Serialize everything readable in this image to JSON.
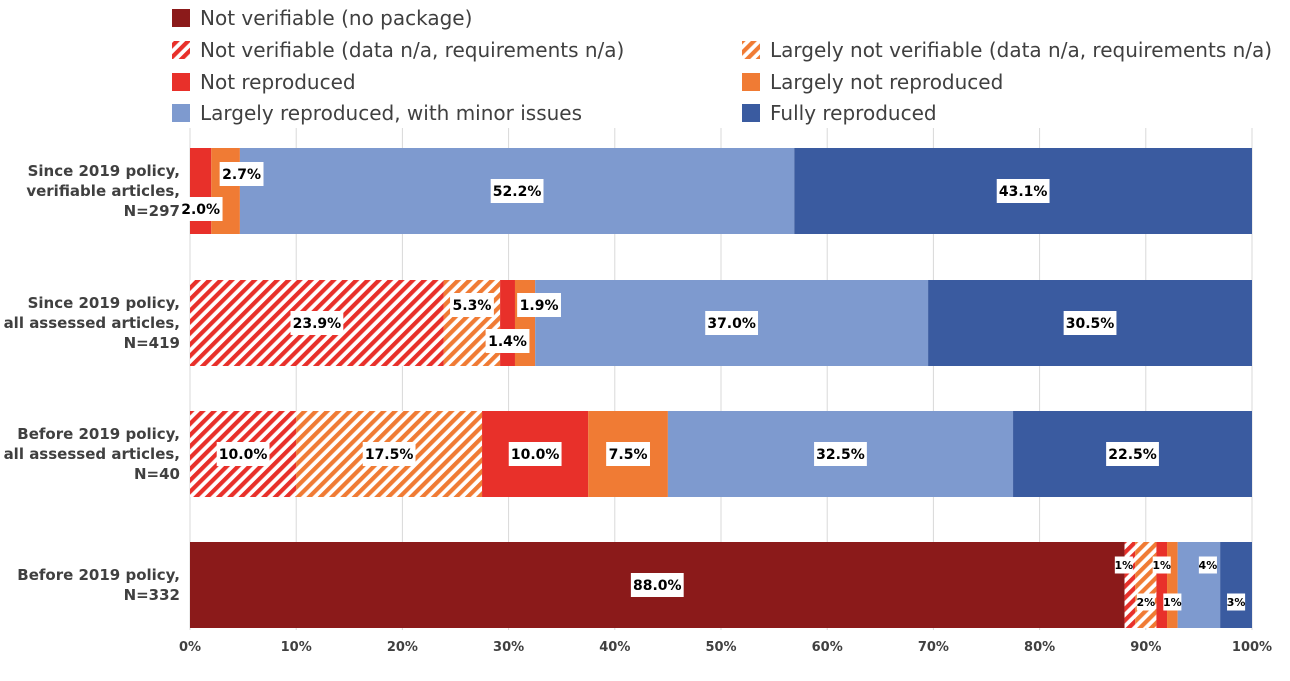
{
  "chart_data": {
    "type": "bar",
    "orientation": "horizontal",
    "stacked": true,
    "percent_scale": true,
    "xlim": [
      0,
      100
    ],
    "x_ticks": [
      "0%",
      "10%",
      "20%",
      "30%",
      "40%",
      "50%",
      "60%",
      "70%",
      "80%",
      "90%",
      "100%"
    ],
    "grid": "vertical",
    "legend_position": "top",
    "categories": [
      [
        "Since 2019 policy,",
        "verifiable articles,",
        "N=297"
      ],
      [
        "Since 2019 policy,",
        "all assessed articles,",
        "N=419"
      ],
      [
        "Before 2019 policy,",
        "all assessed articles,",
        "N=40"
      ],
      [
        "Before 2019 policy,",
        "N=332"
      ]
    ],
    "series": [
      {
        "name": "Not verifiable (no package)",
        "color": "#8B1A1A",
        "pattern": "solid",
        "values": [
          0,
          0,
          0,
          88.0
        ],
        "labels": [
          "",
          "",
          "",
          "88.0%"
        ]
      },
      {
        "name": "Not verifiable (data n/a, requirements n/a)",
        "color": "#E8302A",
        "pattern": "hatch",
        "values": [
          0,
          23.9,
          10.0,
          1.0
        ],
        "labels": [
          "",
          "23.9%",
          "10.0%",
          "1%"
        ]
      },
      {
        "name": "Largely not verifiable (data n/a, requirements n/a)",
        "color": "#F07B34",
        "pattern": "hatch",
        "values": [
          0,
          5.3,
          17.5,
          2.0
        ],
        "labels": [
          "",
          "5.3%",
          "17.5%",
          "2%"
        ]
      },
      {
        "name": "Not reproduced",
        "color": "#E8302A",
        "pattern": "solid",
        "values": [
          2.0,
          1.4,
          10.0,
          1.0
        ],
        "labels": [
          "2.0%",
          "1.4%",
          "10.0%",
          "1%"
        ]
      },
      {
        "name": "Largely not reproduced",
        "color": "#F07B34",
        "pattern": "solid",
        "values": [
          2.7,
          1.9,
          7.5,
          1.0
        ],
        "labels": [
          "2.7%",
          "1.9%",
          "7.5%",
          "1%"
        ]
      },
      {
        "name": "Largely reproduced, with minor issues",
        "color": "#7E9ACF",
        "pattern": "solid",
        "values": [
          52.2,
          37.0,
          32.5,
          4.0
        ],
        "labels": [
          "52.2%",
          "37.0%",
          "32.5%",
          "4%"
        ]
      },
      {
        "name": "Fully reproduced",
        "color": "#3A5BA0",
        "pattern": "solid",
        "values": [
          43.1,
          30.5,
          22.5,
          3.0
        ],
        "labels": [
          "43.1%",
          "30.5%",
          "22.5%",
          "3%"
        ]
      }
    ]
  }
}
